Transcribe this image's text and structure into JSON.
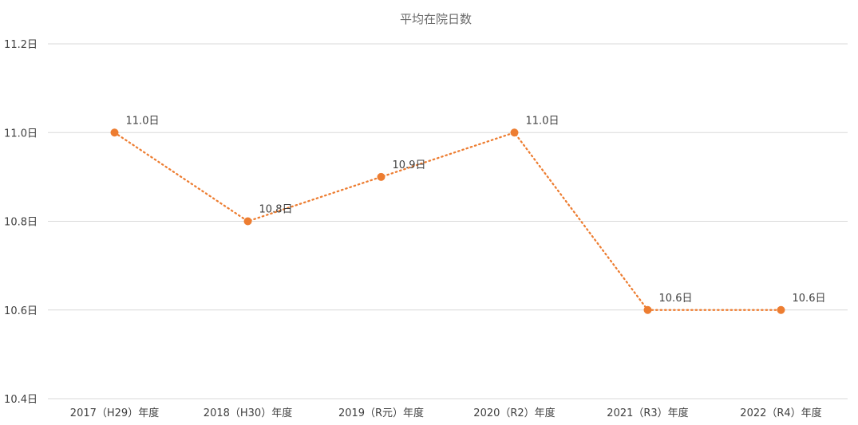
{
  "chart_data": {
    "type": "line",
    "title": "平均在院日数",
    "categories": [
      "2017（H29）年度",
      "2018（H30）年度",
      "2019（R元）年度",
      "2020（R2）年度",
      "2021（R3）年度",
      "2022（R4）年度"
    ],
    "series": [
      {
        "values": [
          11.0,
          10.8,
          10.9,
          11.0,
          10.6,
          10.6
        ],
        "color": "#ED7D31",
        "line_style": "dotted",
        "marker": "circle"
      }
    ],
    "data_labels": [
      "11.0日",
      "10.8日",
      "10.9日",
      "11.0日",
      "10.6日",
      "10.6日"
    ],
    "y_ticks": [
      10.4,
      10.6,
      10.8,
      11.0,
      11.2
    ],
    "y_tick_labels": [
      "10.4日",
      "10.6日",
      "10.8日",
      "11.0日",
      "11.2日"
    ],
    "ylim": [
      10.4,
      11.2
    ],
    "grid": true,
    "legend": "none",
    "grid_color": "#D9D9D9",
    "text_color": "#404040",
    "title_color": "#6B6B6B"
  }
}
